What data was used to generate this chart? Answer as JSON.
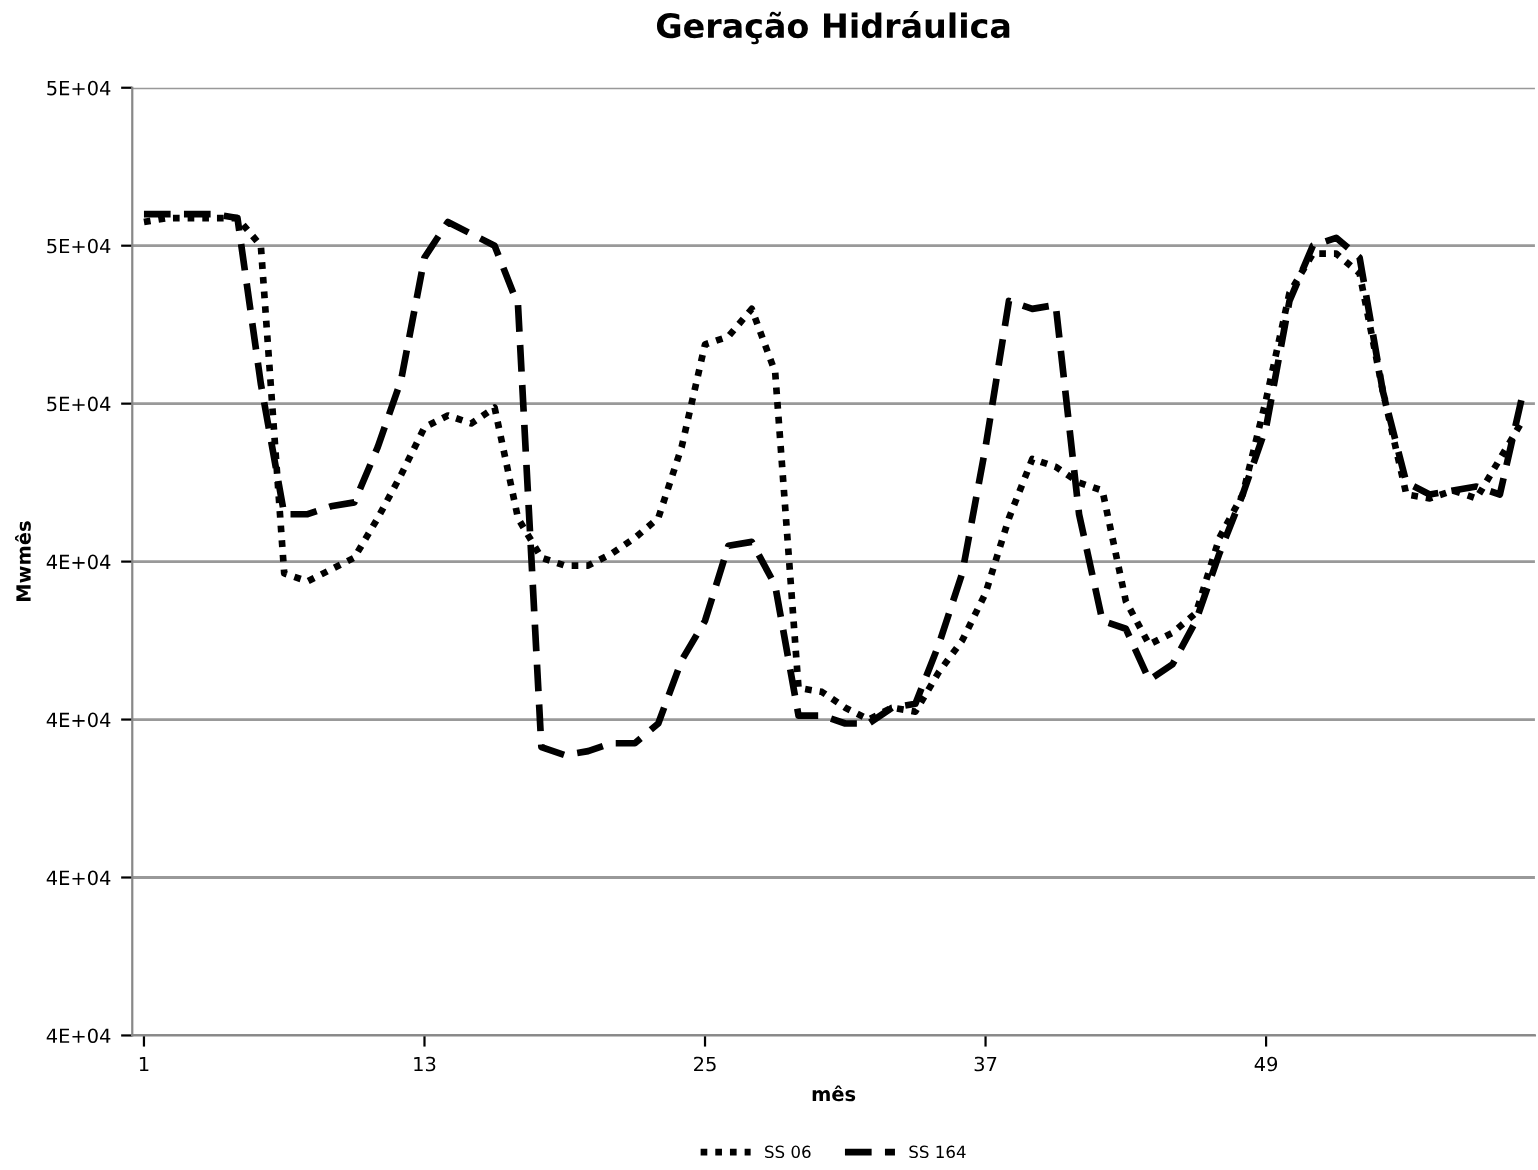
{
  "chart_data": {
    "type": "line",
    "title": "Geração Hidráulica",
    "xlabel": "mês",
    "ylabel": "Mwmês",
    "x": [
      1,
      2,
      3,
      4,
      5,
      6,
      7,
      8,
      9,
      10,
      11,
      12,
      13,
      14,
      15,
      16,
      17,
      18,
      19,
      20,
      21,
      22,
      23,
      24,
      25,
      26,
      27,
      28,
      29,
      30,
      31,
      32,
      33,
      34,
      35,
      36,
      37,
      38,
      39,
      40,
      41,
      42,
      43,
      44,
      45,
      46,
      47,
      48,
      49,
      50,
      51,
      52,
      53,
      54,
      55,
      56,
      57,
      58,
      59,
      60
    ],
    "xlim": [
      0.5,
      60.5
    ],
    "xticks": [
      1,
      13,
      25,
      37,
      49
    ],
    "ylim": [
      38000,
      50000
    ],
    "yticks": [
      {
        "value": 38000,
        "label": "4E+04"
      },
      {
        "value": 40000,
        "label": "4E+04"
      },
      {
        "value": 42000,
        "label": "4E+04"
      },
      {
        "value": 44000,
        "label": "4E+04"
      },
      {
        "value": 46000,
        "label": "5E+04"
      },
      {
        "value": 48000,
        "label": "5E+04"
      },
      {
        "value": 50000,
        "label": "5E+04"
      }
    ],
    "grid": "y",
    "legend": "bottom",
    "marker": "none",
    "series": [
      {
        "name": "SS 06",
        "color": "#000000",
        "line_style": "dotted",
        "values": [
          48300,
          48350,
          48350,
          48350,
          48350,
          48000,
          43850,
          43750,
          43900,
          44050,
          44550,
          45100,
          45700,
          45850,
          45750,
          45950,
          44550,
          44050,
          43950,
          43950,
          44100,
          44300,
          44550,
          45450,
          46750,
          46850,
          47200,
          46400,
          42400,
          42350,
          42150,
          42000,
          42150,
          42100,
          42600,
          43000,
          43600,
          44550,
          45300,
          45200,
          45000,
          44900,
          43500,
          42950,
          43100,
          43350,
          44300,
          44850,
          46050,
          47400,
          47900,
          47900,
          47650,
          46150,
          44850,
          44800,
          44900,
          44800,
          45300,
          45800
        ]
      },
      {
        "name": "SS 164",
        "color": "#000000",
        "line_style": "dashed",
        "values": [
          48400,
          48400,
          48400,
          48400,
          48350,
          46250,
          44600,
          44600,
          44700,
          44750,
          45450,
          46300,
          47850,
          48300,
          48150,
          48000,
          47250,
          41650,
          41550,
          41600,
          41700,
          41700,
          41950,
          42750,
          43250,
          44200,
          44250,
          43700,
          42050,
          42050,
          41950,
          41950,
          42150,
          42200,
          42950,
          43850,
          45450,
          47300,
          47200,
          47250,
          44600,
          43250,
          43150,
          42500,
          42700,
          43250,
          44100,
          44850,
          45700,
          47300,
          48000,
          48100,
          47850,
          46150,
          45000,
          44850,
          44900,
          44950,
          44850,
          46150
        ]
      }
    ]
  }
}
